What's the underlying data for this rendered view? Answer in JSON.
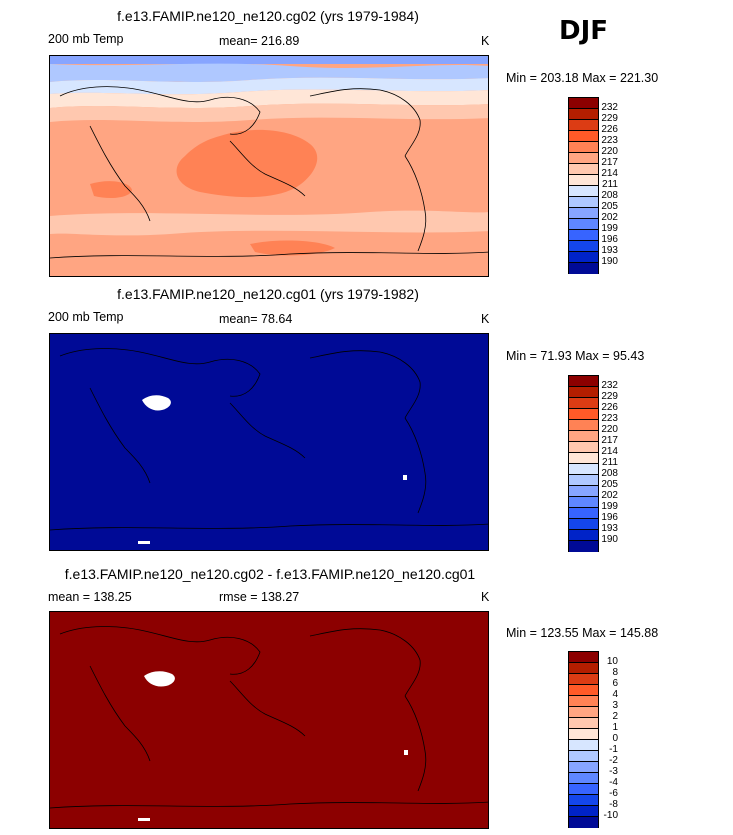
{
  "season": "DJF",
  "units": "K",
  "panels": [
    {
      "title": "f.e13.FAMIP.ne120_ne120.cg02 (yrs 1979-1984)",
      "left_label": "200 mb Temp",
      "mid_label": "mean= 216.89",
      "minmax": "Min = 203.18 Max = 221.30",
      "fill": "gradient"
    },
    {
      "title": "f.e13.FAMIP.ne120_ne120.cg01 (yrs 1979-1982)",
      "left_label": "200 mb Temp",
      "mid_label": "mean=  78.64",
      "minmax": "Min =  71.93 Max =  95.43",
      "fill": "#000a96"
    },
    {
      "title": "f.e13.FAMIP.ne120_ne120.cg02 - f.e13.FAMIP.ne120_ne120.cg01",
      "left_label": "mean = 138.25",
      "mid_label": "rmse = 138.27",
      "minmax": "Min = 123.55 Max = 145.88",
      "fill": "#8c0000"
    }
  ],
  "colorbar_colors": [
    "#8c0000",
    "#b41e00",
    "#dc3c14",
    "#ff5a28",
    "#ff8255",
    "#ffa582",
    "#ffc8af",
    "#ffe6d7",
    "#d7e6ff",
    "#afc8ff",
    "#87a5ff",
    "#5f87ff",
    "#3764ff",
    "#1446eb",
    "#0023c8",
    "#000a96"
  ],
  "chart_data": [
    {
      "type": "heatmap",
      "title": "f.e13.FAMIP.ne120_ne120.cg02 (yrs 1979-1984)",
      "variable": "200 mb Temp",
      "units": "K",
      "mean": 216.89,
      "min": 203.18,
      "max": 221.3,
      "contour_levels": [
        190,
        193,
        196,
        199,
        202,
        205,
        208,
        211,
        214,
        217,
        220,
        223,
        226,
        229,
        232
      ]
    },
    {
      "type": "heatmap",
      "title": "f.e13.FAMIP.ne120_ne120.cg01 (yrs 1979-1982)",
      "variable": "200 mb Temp",
      "units": "K",
      "mean": 78.64,
      "min": 71.93,
      "max": 95.43,
      "contour_levels": [
        190,
        193,
        196,
        199,
        202,
        205,
        208,
        211,
        214,
        217,
        220,
        223,
        226,
        229,
        232
      ]
    },
    {
      "type": "heatmap",
      "title": "f.e13.FAMIP.ne120_ne120.cg02 - f.e13.FAMIP.ne120_ne120.cg01",
      "units": "K",
      "mean": 138.25,
      "rmse": 138.27,
      "min": 123.55,
      "max": 145.88,
      "contour_levels": [
        -10,
        -8,
        -6,
        -4,
        -3,
        -2,
        -1,
        0,
        1,
        2,
        3,
        4,
        6,
        8,
        10
      ]
    }
  ]
}
